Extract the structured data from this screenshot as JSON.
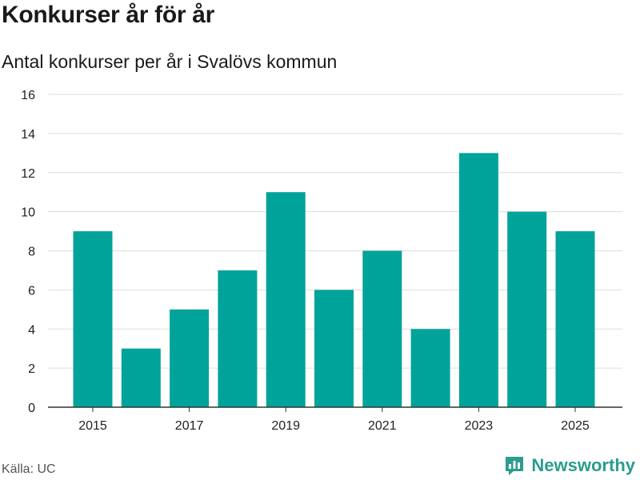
{
  "header": {
    "title": "Konkurser år för år",
    "subtitle": "Antal konkurser per år i Svalövs kommun"
  },
  "footer": {
    "source": "Källa: UC",
    "brand": "Newsworthy"
  },
  "colors": {
    "bar": "#00a39a",
    "grid": "#dddddd",
    "axis": "#333333",
    "brand": "#2a9d8f"
  },
  "chart_data": {
    "type": "bar",
    "categories": [
      2015,
      2016,
      2017,
      2018,
      2019,
      2020,
      2021,
      2022,
      2023,
      2024,
      2025
    ],
    "values": [
      9,
      3,
      5,
      7,
      11,
      6,
      8,
      4,
      13,
      10,
      9
    ],
    "x_tick_labels": [
      "2015",
      "2017",
      "2019",
      "2021",
      "2023",
      "2025"
    ],
    "y_ticks": [
      0,
      2,
      4,
      6,
      8,
      10,
      12,
      14,
      16
    ],
    "ylim": [
      0,
      16
    ],
    "grid": true,
    "legend": "none"
  }
}
